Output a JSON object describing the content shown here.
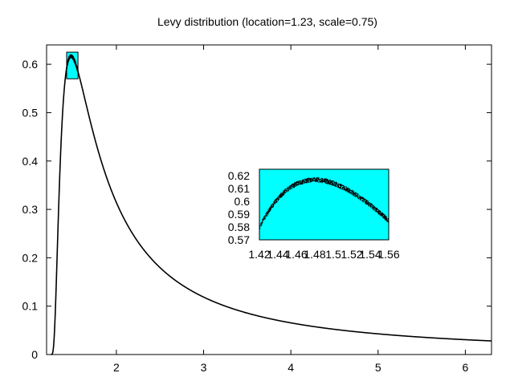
{
  "chart_data": [
    {
      "type": "line",
      "title": "Levy distribution (location=1.23, scale=0.75)",
      "distribution": {
        "location": 1.23,
        "scale": 0.75
      },
      "xlim": [
        1.2,
        6.3
      ],
      "ylim": [
        0,
        0.64
      ],
      "x_ticks": [
        2,
        3,
        4,
        5,
        6
      ],
      "x_tick_labels": [
        "2",
        "3",
        "4",
        "5",
        "6"
      ],
      "y_ticks": [
        0,
        0.1,
        0.2,
        0.3,
        0.4,
        0.5,
        0.6
      ],
      "y_tick_labels": [
        "0",
        "0.1",
        "0.2",
        "0.3",
        "0.4",
        "0.5",
        "0.6"
      ],
      "grid": false,
      "highlight_box": {
        "x": [
          1.43,
          1.56
        ],
        "y": [
          0.57,
          0.625
        ],
        "color": "#00ffff"
      },
      "series_color": "#000000"
    },
    {
      "type": "scatter",
      "title": "",
      "xlim": [
        1.42,
        1.56
      ],
      "ylim": [
        0.57,
        0.625
      ],
      "x_ticks": [
        1.42,
        1.44,
        1.46,
        1.48,
        1.5,
        1.52,
        1.54,
        1.56
      ],
      "x_tick_labels": [
        "1.42",
        "1.44",
        "1.46",
        "1.48",
        "1.5",
        "1.52",
        "1.54",
        "1.56"
      ],
      "y_ticks": [
        0.57,
        0.58,
        0.59,
        0.6,
        0.61,
        0.62
      ],
      "y_tick_labels": [
        "0.57",
        "0.58",
        "0.59",
        "0.6",
        "0.61",
        "0.62"
      ],
      "background": "#00ffff",
      "series_color": "#000000"
    }
  ]
}
